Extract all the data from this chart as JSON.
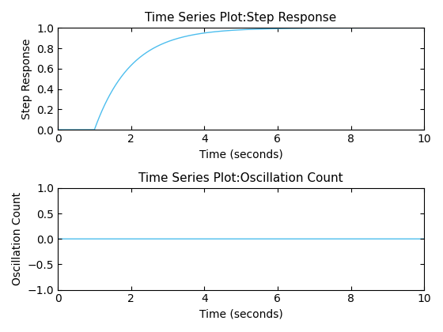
{
  "title1": "Time Series Plot:Step Response",
  "title2": "Time Series Plot:Oscillation Count",
  "xlabel": "Time (seconds)",
  "ylabel1": "Step Response",
  "ylabel2": "Oscillation Count",
  "xlim": [
    0,
    10
  ],
  "ylim1": [
    0,
    1
  ],
  "ylim2": [
    -1,
    1
  ],
  "xticks": [
    0,
    2,
    4,
    6,
    8,
    10
  ],
  "yticks1": [
    0,
    0.2,
    0.4,
    0.6,
    0.8,
    1.0
  ],
  "yticks2": [
    -1,
    -0.5,
    0,
    0.5,
    1
  ],
  "line_color": "#4DBEEE",
  "background_color": "#ffffff",
  "step_delay": 1.0,
  "num_points": 1000,
  "title_fontsize": 11,
  "label_fontsize": 10
}
